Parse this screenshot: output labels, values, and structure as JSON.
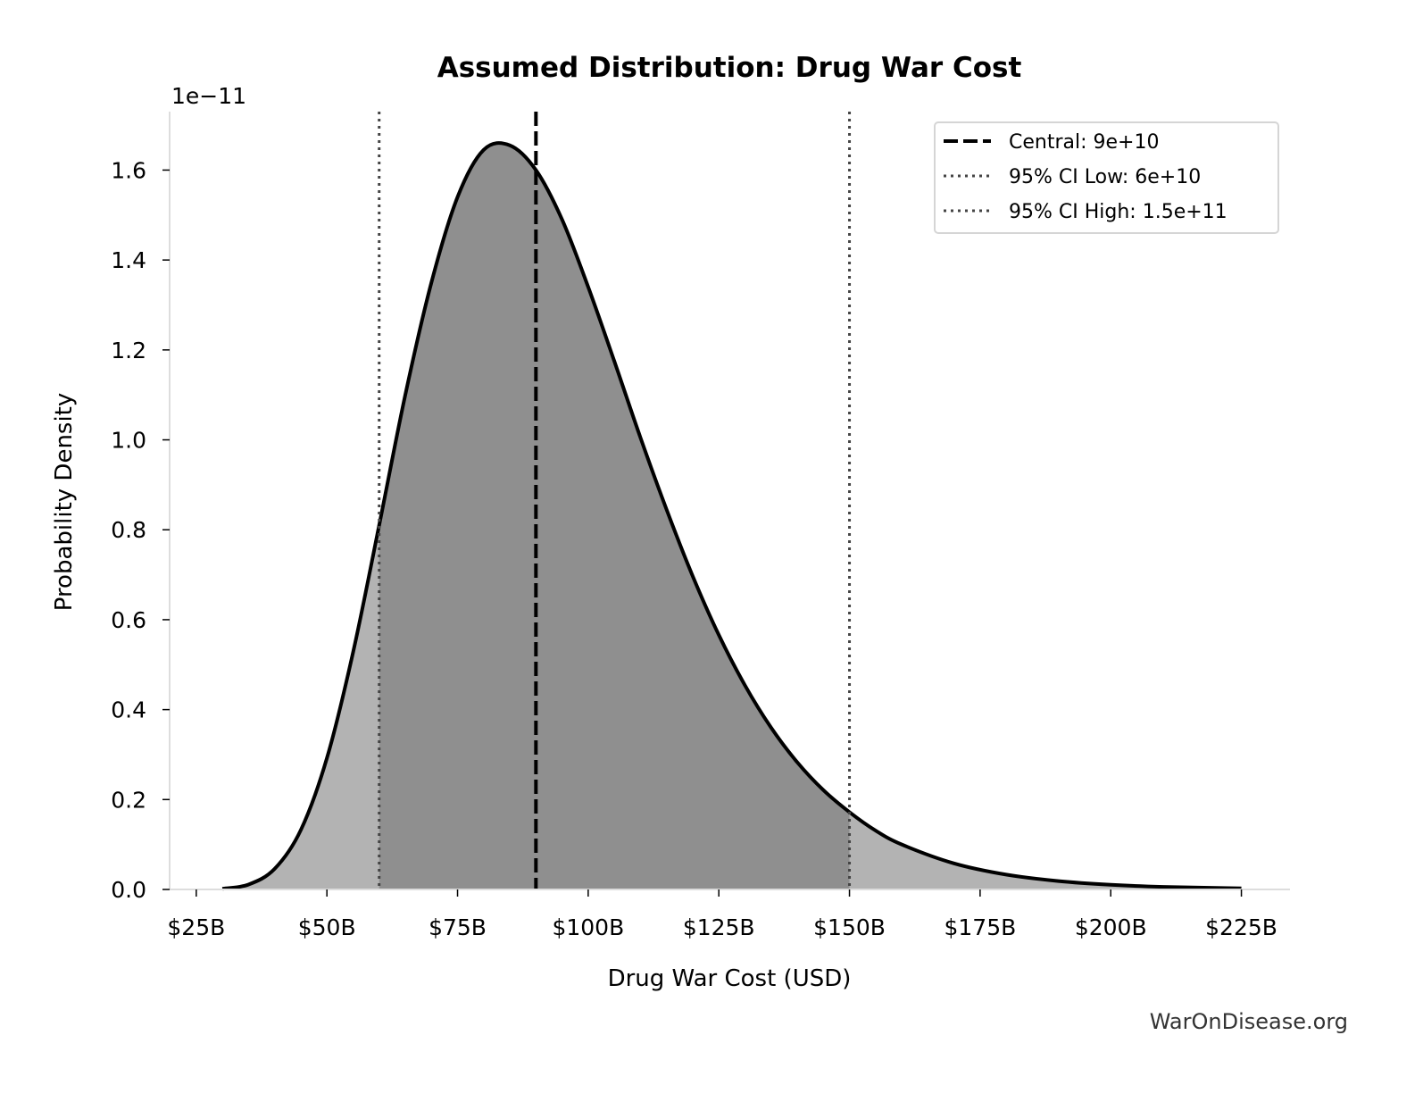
{
  "chart_data": {
    "type": "area",
    "title": "Assumed Distribution: Drug War Cost",
    "xlabel": "Drug War Cost (USD)",
    "ylabel": "Probability Density",
    "y_offset_label": "1e−11",
    "xlim": [
      19.9,
      234.3
    ],
    "ylim": [
      0,
      1.73
    ],
    "x_unit": "billion USD",
    "y_unit": "1e-11",
    "x_ticks": [
      25,
      50,
      75,
      100,
      125,
      150,
      175,
      200,
      225
    ],
    "x_tick_labels": [
      "$25B",
      "$50B",
      "$75B",
      "$100B",
      "$125B",
      "$150B",
      "$175B",
      "$200B",
      "$225B"
    ],
    "y_ticks": [
      0,
      0.2,
      0.4,
      0.6,
      0.8,
      1.0,
      1.2,
      1.4,
      1.6
    ],
    "y_tick_labels": [
      "0.0",
      "0.2",
      "0.4",
      "0.6",
      "0.8",
      "1.0",
      "1.2",
      "1.4",
      "1.6"
    ],
    "grid": false,
    "curve": {
      "x": [
        30,
        35,
        40,
        45,
        50,
        55,
        60,
        65,
        70,
        75,
        80,
        85,
        90,
        95,
        100,
        105,
        110,
        115,
        120,
        125,
        130,
        135,
        140,
        145,
        150,
        155,
        160,
        170,
        180,
        190,
        200,
        210,
        225
      ],
      "y": [
        0.0016,
        0.011,
        0.046,
        0.132,
        0.292,
        0.527,
        0.81,
        1.1,
        1.35,
        1.54,
        1.645,
        1.655,
        1.6,
        1.49,
        1.34,
        1.175,
        1.005,
        0.845,
        0.697,
        0.566,
        0.454,
        0.36,
        0.283,
        0.221,
        0.172,
        0.131,
        0.1,
        0.058,
        0.033,
        0.0186,
        0.0104,
        0.0058,
        0.0024
      ]
    },
    "shaded_interval": [
      60,
      150
    ],
    "lines": [
      {
        "label": "Central: 9e+10",
        "x": 90,
        "style": "dashed",
        "color": "#000000"
      },
      {
        "label": "95% CI Low: 6e+10",
        "x": 60,
        "style": "dotted",
        "color": "#444444"
      },
      {
        "label": "95% CI High: 1.5e+11",
        "x": 150,
        "style": "dotted",
        "color": "#444444"
      }
    ],
    "legend_position": "top-right",
    "colors": {
      "outer_fill": "#b3b3b3",
      "inner_fill": "#8f8f8f",
      "curve": "#000000"
    }
  },
  "watermark": "WarOnDisease.org"
}
